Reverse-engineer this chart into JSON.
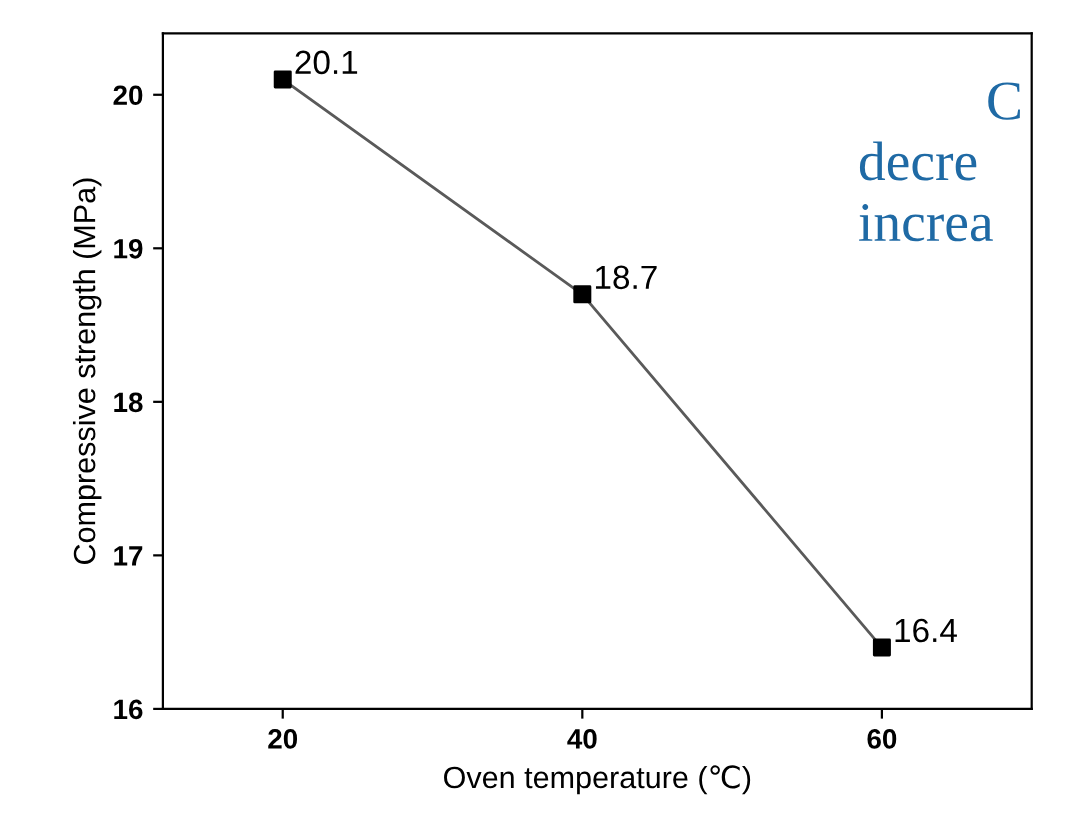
{
  "chart_data": {
    "type": "line",
    "xlabel": "Oven temperature (℃)",
    "ylabel": "Compressive strength (MPa)",
    "x": [
      20,
      40,
      60
    ],
    "series": [
      {
        "color": "#5a5a5a",
        "values": [
          20.1,
          18.7,
          16.4
        ]
      }
    ],
    "data_labels": true,
    "marker": "square",
    "line_style": "solid",
    "grid": false,
    "legend": false,
    "xlim": [
      12,
      70
    ],
    "xticks": [
      20,
      40,
      60
    ],
    "ylim": [
      16,
      20.4
    ],
    "yticks": [
      16,
      17,
      18,
      19,
      20
    ],
    "annotations": [
      "C",
      "decre",
      "increa"
    ]
  }
}
